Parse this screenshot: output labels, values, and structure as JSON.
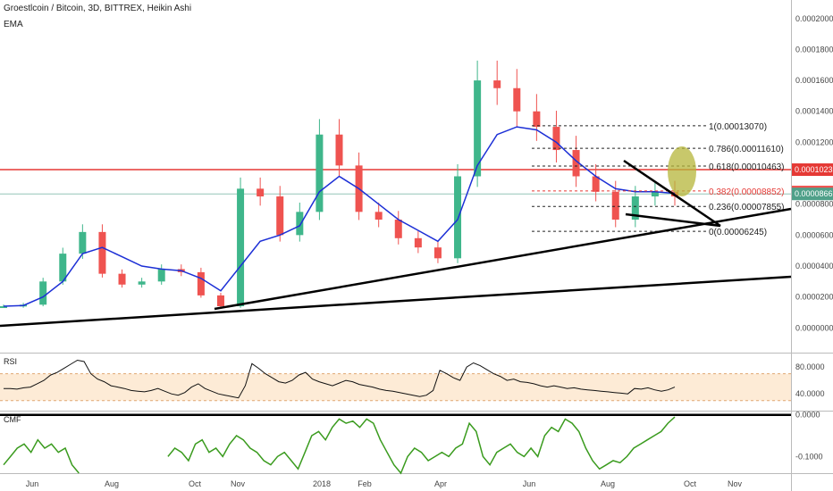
{
  "header": {
    "title": "Groestlcoin / Bitcoin, 3D, BITTREX, Heikin Ashi",
    "indicator": "EMA"
  },
  "colors": {
    "up": "#3fb68b",
    "down": "#ef5350",
    "ema": "#1c2fd6",
    "resistance": "#e53935",
    "price_badge": "#4fa089",
    "trendline": "#000000",
    "rsi_band": "#fdebd6",
    "cmf_line": "#3a9b1e",
    "highlight_ellipse": "#b5b53a"
  },
  "chart_data": [
    {
      "type": "line",
      "name": "price",
      "x_ticks": [
        "Jun",
        "Aug",
        "Oct",
        "Nov",
        "2018",
        "Feb",
        "Apr",
        "Jun",
        "Aug",
        "Oct",
        "Nov"
      ],
      "y_ticks": [
        "0.00020000",
        "0.00018000",
        "0.00016000",
        "0.00014000",
        "0.00012000",
        "0.00010000",
        "0.00008000",
        "0.00006000",
        "0.00004000",
        "0.00002000",
        "0.00000000"
      ],
      "ylim": [
        -1.6e-05,
        0.000212
      ],
      "candles_note": "Heikin Ashi candles, 3D bars",
      "close_path": [
        [
          "Jun",
          1.4e-05
        ],
        [
          "Jun",
          1.5e-05
        ],
        [
          "Jul",
          3e-05
        ],
        [
          "Jul",
          4.8e-05
        ],
        [
          "Aug",
          6.2e-05
        ],
        [
          "Aug",
          3.5e-05
        ],
        [
          "Sep",
          2.8e-05
        ],
        [
          "Sep",
          3e-05
        ],
        [
          "Sep",
          3.8e-05
        ],
        [
          "Oct",
          3.6e-05
        ],
        [
          "Oct",
          2.1e-05
        ],
        [
          "Nov",
          1.4e-05
        ],
        [
          "Nov",
          9e-05
        ],
        [
          "Nov",
          8.5e-05
        ],
        [
          "Dec",
          6e-05
        ],
        [
          "Dec",
          7.5e-05
        ],
        [
          "2018",
          0.000125
        ],
        [
          "2018",
          0.000105
        ],
        [
          "Feb",
          7.5e-05
        ],
        [
          "Feb",
          7e-05
        ],
        [
          "Mar",
          5.8e-05
        ],
        [
          "Mar",
          5.2e-05
        ],
        [
          "Apr",
          4.5e-05
        ],
        [
          "Apr",
          9.8e-05
        ],
        [
          "Apr",
          0.00016
        ],
        [
          "May",
          0.000155
        ],
        [
          "May",
          0.00014
        ],
        [
          "Jun",
          0.00013
        ],
        [
          "Jun",
          0.000115
        ],
        [
          "Jul",
          9.8e-05
        ],
        [
          "Jul",
          8.8e-05
        ],
        [
          "Aug",
          7e-05
        ],
        [
          "Aug",
          8.5e-05
        ],
        [
          "Aug",
          8.8e-05
        ],
        [
          "Sep",
          8.5e-05
        ]
      ],
      "ema_path": [
        1.4e-05,
        1.45e-05,
        2e-05,
        3e-05,
        4.8e-05,
        5.2e-05,
        4.6e-05,
        4e-05,
        3.8e-05,
        3.7e-05,
        3.2e-05,
        2.4e-05,
        4e-05,
        5.6e-05,
        6e-05,
        6.6e-05,
        8.8e-05,
        9.8e-05,
        9e-05,
        8e-05,
        7e-05,
        6.3e-05,
        5.6e-05,
        7e-05,
        0.000105,
        0.000125,
        0.00013,
        0.000128,
        0.00012,
        0.000108,
        9.8e-05,
        9e-05,
        8.8e-05,
        8.8e-05,
        8.7e-05
      ],
      "fib_levels": [
        {
          "label": "1(0.00013070)",
          "value": 0.0001307,
          "color": "#222222"
        },
        {
          "label": "0.786(0.00011610)",
          "value": 0.0001161,
          "color": "#222222"
        },
        {
          "label": "0.618(0.00010463)",
          "value": 0.00010463,
          "color": "#222222"
        },
        {
          "label": "0.382(0.00008852)",
          "value": 8.852e-05,
          "color": "#e53935"
        },
        {
          "label": "0.236(0.00007855)",
          "value": 7.855e-05,
          "color": "#222222"
        },
        {
          "label": "0(0.00006245)",
          "value": 6.245e-05,
          "color": "#222222"
        }
      ],
      "horizontal_lines": [
        {
          "value": 0.00010232,
          "color": "#e53935"
        },
        {
          "value": 8.661e-05,
          "color": "#4fa089"
        }
      ],
      "price_badges": [
        "0.00010232",
        "0.00008788",
        "0.00008661"
      ]
    },
    {
      "type": "line",
      "name": "RSI",
      "label": "RSI",
      "y_ticks": [
        "80.0000",
        "40.0000"
      ],
      "ylim": [
        15,
        100
      ],
      "band": [
        30,
        70
      ],
      "values": [
        48,
        48,
        47,
        49,
        50,
        55,
        60,
        68,
        72,
        78,
        84,
        90,
        88,
        70,
        62,
        58,
        52,
        50,
        48,
        45,
        44,
        43,
        45,
        48,
        44,
        40,
        38,
        42,
        50,
        55,
        48,
        44,
        40,
        38,
        36,
        34,
        52,
        85,
        78,
        70,
        64,
        58,
        56,
        60,
        68,
        72,
        62,
        58,
        55,
        52,
        56,
        60,
        58,
        54,
        52,
        50,
        47,
        45,
        44,
        42,
        40,
        38,
        36,
        38,
        45,
        75,
        70,
        64,
        60,
        80,
        86,
        82,
        76,
        70,
        66,
        60,
        62,
        58,
        57,
        55,
        52,
        50,
        52,
        50,
        48,
        49,
        47,
        46,
        45,
        44,
        43,
        42,
        41,
        40,
        48,
        47,
        49,
        46,
        44,
        46,
        50
      ]
    },
    {
      "type": "line",
      "name": "CMF",
      "label": "CMF",
      "y_ticks": [
        "0.0000",
        "-0.1000"
      ],
      "ylim": [
        -0.14,
        0.008
      ],
      "values": [
        -0.12,
        -0.1,
        -0.08,
        -0.07,
        -0.09,
        -0.06,
        -0.08,
        -0.07,
        -0.09,
        -0.08,
        -0.12,
        -0.14,
        null,
        null,
        null,
        null,
        null,
        null,
        null,
        null,
        null,
        null,
        null,
        null,
        -0.1,
        -0.08,
        -0.09,
        -0.11,
        -0.07,
        -0.06,
        -0.09,
        -0.08,
        -0.1,
        -0.07,
        -0.05,
        -0.06,
        -0.08,
        -0.09,
        -0.11,
        -0.12,
        -0.1,
        -0.09,
        -0.11,
        -0.13,
        -0.09,
        -0.05,
        -0.04,
        -0.06,
        -0.03,
        -0.01,
        -0.02,
        -0.015,
        -0.03,
        -0.01,
        -0.02,
        -0.06,
        -0.09,
        -0.12,
        -0.14,
        -0.1,
        -0.08,
        -0.09,
        -0.11,
        -0.1,
        -0.09,
        -0.1,
        -0.08,
        -0.07,
        -0.02,
        -0.04,
        -0.1,
        -0.12,
        -0.09,
        -0.08,
        -0.07,
        -0.09,
        -0.1,
        -0.08,
        -0.1,
        -0.05,
        -0.03,
        -0.04,
        -0.01,
        -0.02,
        -0.04,
        -0.08,
        -0.11,
        -0.13,
        -0.12,
        -0.11,
        -0.115,
        -0.1,
        -0.08,
        -0.07,
        -0.06,
        -0.05,
        -0.04,
        -0.02,
        -0.005
      ]
    }
  ]
}
